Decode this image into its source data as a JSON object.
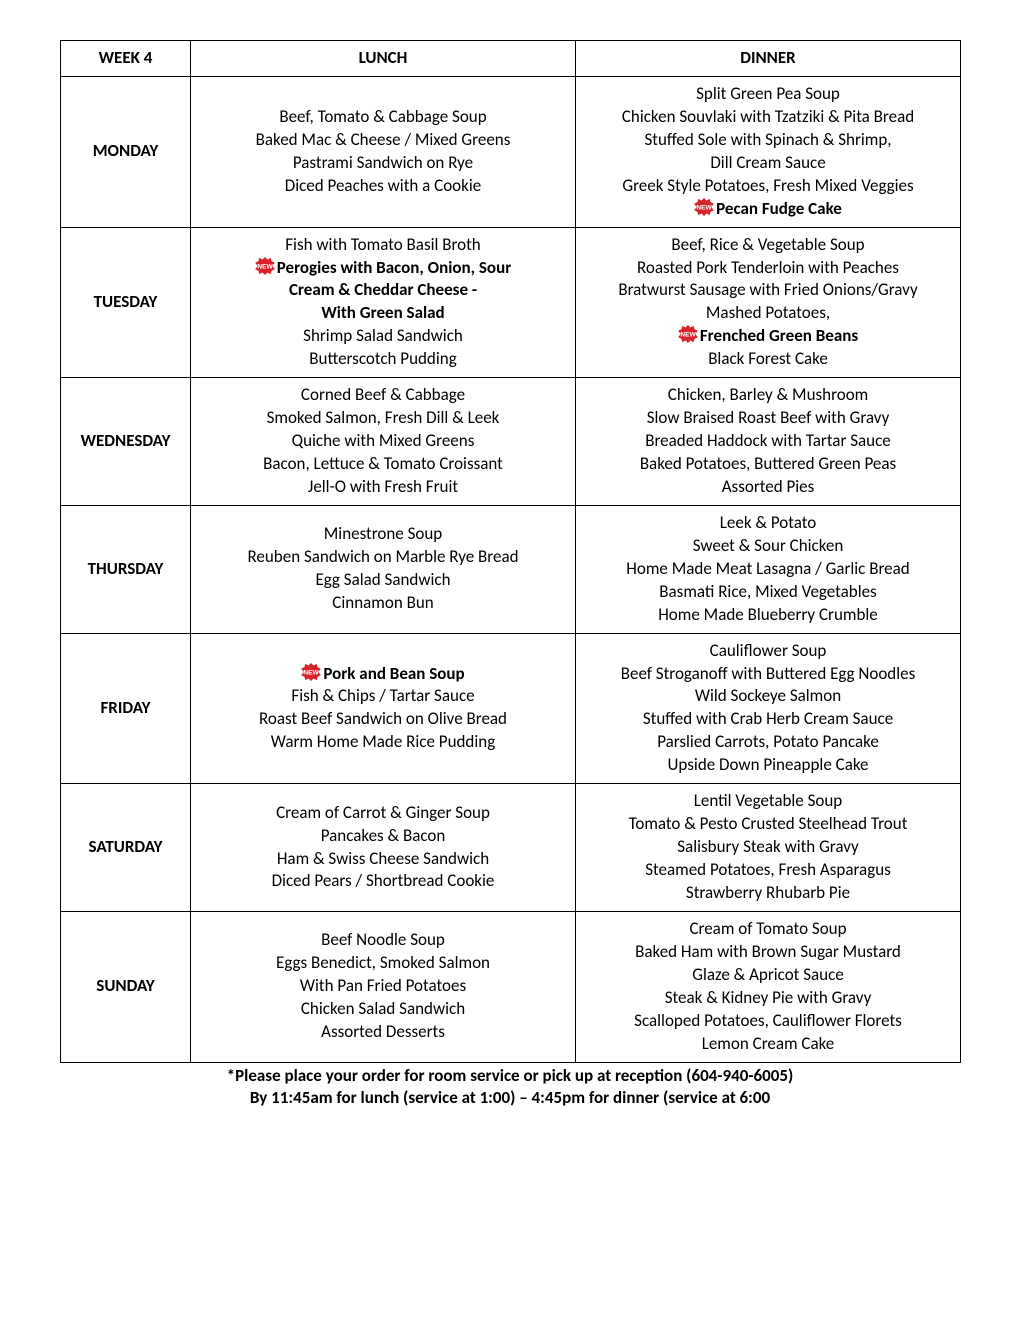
{
  "colors": {
    "border": "#000000",
    "text": "#000000",
    "background": "#ffffff",
    "badge_fill": "#d8232a",
    "badge_text": "#ffffff"
  },
  "header": {
    "week": "WEEK 4",
    "lunch": "LUNCH",
    "dinner": "DINNER"
  },
  "days": {
    "monday": {
      "label": "MONDAY",
      "lunch": [
        {
          "text": "Beef, Tomato & Cabbage Soup"
        },
        {
          "text": "Baked Mac & Cheese / Mixed Greens"
        },
        {
          "text": "Pastrami Sandwich on Rye"
        },
        {
          "text": "Diced Peaches with a Cookie"
        }
      ],
      "dinner": [
        {
          "text": "Split Green Pea Soup"
        },
        {
          "text": "Chicken Souvlaki with Tzatziki & Pita Bread"
        },
        {
          "text": "Stuffed Sole with Spinach & Shrimp,"
        },
        {
          "text": "Dill Cream Sauce"
        },
        {
          "text": "Greek Style Potatoes, Fresh Mixed Veggies"
        },
        {
          "text": "Pecan Fudge Cake",
          "new": true,
          "bold": true
        }
      ]
    },
    "tuesday": {
      "label": "TUESDAY",
      "lunch": [
        {
          "text": "Fish with Tomato Basil Broth"
        },
        {
          "text": "Perogies with Bacon, Onion, Sour",
          "new": true,
          "bold": true
        },
        {
          "text": "Cream & Cheddar Cheese -",
          "bold": true
        },
        {
          "text": "With Green Salad",
          "bold": true
        },
        {
          "text": "Shrimp Salad Sandwich"
        },
        {
          "text": "Butterscotch Pudding"
        }
      ],
      "dinner": [
        {
          "text": "Beef, Rice & Vegetable Soup"
        },
        {
          "text": "Roasted Pork Tenderloin with Peaches"
        },
        {
          "text": "Bratwurst Sausage with Fried Onions/Gravy"
        },
        {
          "text": "Mashed Potatoes,"
        },
        {
          "text": "Frenched Green Beans",
          "new": true,
          "bold": true
        },
        {
          "text": "Black Forest Cake"
        }
      ]
    },
    "wednesday": {
      "label": "WEDNESDAY",
      "lunch": [
        {
          "text": "Corned Beef & Cabbage"
        },
        {
          "text": "Smoked Salmon, Fresh Dill & Leek"
        },
        {
          "text": "Quiche with Mixed Greens"
        },
        {
          "text": "Bacon, Lettuce & Tomato Croissant"
        },
        {
          "text": "Jell-O with Fresh Fruit"
        }
      ],
      "dinner": [
        {
          "text": "Chicken, Barley & Mushroom"
        },
        {
          "text": "Slow Braised Roast Beef with Gravy"
        },
        {
          "text": "Breaded Haddock with Tartar Sauce"
        },
        {
          "text": "Baked Potatoes, Buttered Green Peas"
        },
        {
          "text": "Assorted Pies"
        }
      ]
    },
    "thursday": {
      "label": "THURSDAY",
      "lunch": [
        {
          "text": "Minestrone Soup"
        },
        {
          "text": "Reuben Sandwich on Marble Rye Bread"
        },
        {
          "text": "Egg Salad Sandwich"
        },
        {
          "text": "Cinnamon Bun"
        }
      ],
      "dinner": [
        {
          "text": "Leek & Potato"
        },
        {
          "text": "Sweet & Sour Chicken"
        },
        {
          "text": "Home Made Meat Lasagna / Garlic Bread"
        },
        {
          "text": "Basmati Rice, Mixed Vegetables"
        },
        {
          "text": "Home Made Blueberry Crumble"
        }
      ]
    },
    "friday": {
      "label": "FRIDAY",
      "lunch": [
        {
          "text": "Pork and Bean Soup",
          "new": true,
          "bold": true
        },
        {
          "text": "Fish & Chips / Tartar Sauce"
        },
        {
          "text": "Roast Beef Sandwich on Olive Bread"
        },
        {
          "text": "Warm Home Made Rice Pudding"
        }
      ],
      "dinner": [
        {
          "text": "Cauliflower Soup"
        },
        {
          "text": "Beef Stroganoff with Buttered Egg Noodles"
        },
        {
          "text": "Wild Sockeye Salmon"
        },
        {
          "text": "Stuffed with Crab Herb Cream Sauce"
        },
        {
          "text": "Parslied Carrots, Potato Pancake"
        },
        {
          "text": "Upside Down Pineapple Cake"
        }
      ]
    },
    "saturday": {
      "label": "SATURDAY",
      "lunch": [
        {
          "text": "Cream of Carrot & Ginger Soup"
        },
        {
          "text": "Pancakes & Bacon"
        },
        {
          "text": "Ham & Swiss Cheese Sandwich"
        },
        {
          "text": "Diced Pears / Shortbread Cookie"
        }
      ],
      "dinner": [
        {
          "text": "Lentil Vegetable Soup"
        },
        {
          "text": "Tomato & Pesto Crusted Steelhead Trout"
        },
        {
          "text": "Salisbury Steak with Gravy"
        },
        {
          "text": "Steamed Potatoes, Fresh Asparagus"
        },
        {
          "text": "Strawberry Rhubarb Pie"
        }
      ]
    },
    "sunday": {
      "label": "SUNDAY",
      "lunch": [
        {
          "text": "Beef Noodle Soup"
        },
        {
          "text": "Eggs Benedict, Smoked Salmon"
        },
        {
          "text": "With Pan Fried Potatoes"
        },
        {
          "text": "Chicken Salad Sandwich"
        },
        {
          "text": "Assorted Desserts"
        }
      ],
      "dinner": [
        {
          "text": "Cream of Tomato Soup"
        },
        {
          "text": "Baked Ham with Brown Sugar Mustard"
        },
        {
          "text": "Glaze & Apricot Sauce"
        },
        {
          "text": "Steak & Kidney Pie with Gravy"
        },
        {
          "text": "Scalloped Potatoes, Cauliflower Florets"
        },
        {
          "text": "Lemon Cream Cake"
        }
      ]
    }
  },
  "footer": {
    "line1": "*Please place your order for room service or pick up at reception (604-940-6005)",
    "line2": "By 11:45am for lunch (service at 1:00) – 4:45pm for dinner (service at 6:00"
  }
}
